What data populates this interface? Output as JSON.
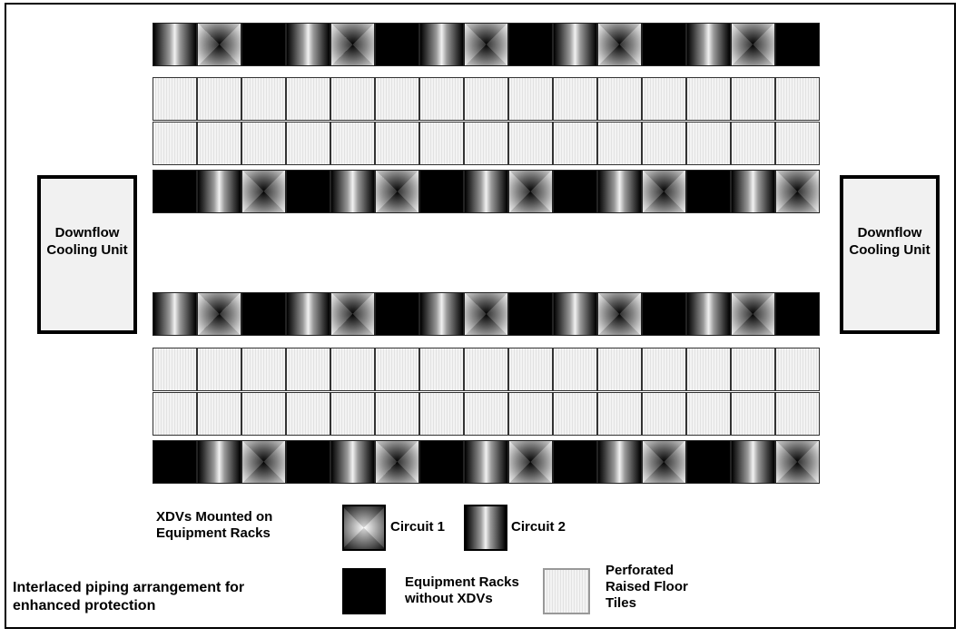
{
  "cooling_units": {
    "left": "Downflow Cooling Unit",
    "right": "Downflow Cooling Unit"
  },
  "layout_rows": {
    "upper_front": [
      "c2",
      "c1",
      "rack",
      "c2",
      "c1",
      "rack",
      "c2",
      "c1",
      "rack",
      "c2",
      "c1",
      "rack",
      "c2",
      "c1",
      "rack"
    ],
    "upper_back": [
      "rack",
      "c2",
      "c1",
      "rack",
      "c2",
      "c1",
      "rack",
      "c2",
      "c1",
      "rack",
      "c2",
      "c1",
      "rack",
      "c2",
      "c1"
    ],
    "lower_front": [
      "c2",
      "c1",
      "rack",
      "c2",
      "c1",
      "rack",
      "c2",
      "c1",
      "rack",
      "c2",
      "c1",
      "rack",
      "c2",
      "c1",
      "rack"
    ],
    "lower_back": [
      "rack",
      "c2",
      "c1",
      "rack",
      "c2",
      "c1",
      "rack",
      "c2",
      "c1",
      "rack",
      "c2",
      "c1",
      "rack",
      "c2",
      "c1"
    ]
  },
  "legend": {
    "xdv_label": "XDVs Mounted on Equipment Racks",
    "circuit1": "Circuit 1",
    "circuit2": "Circuit 2",
    "racks_without": "Equipment Racks without XDVs",
    "floor_tiles": "Perforated Raised Floor Tiles",
    "note": "Interlaced piping arrangement for enhanced protection"
  }
}
